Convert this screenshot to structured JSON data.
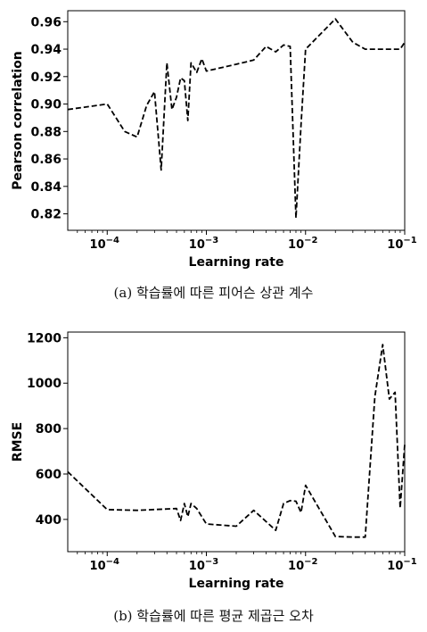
{
  "chart_data": [
    {
      "type": "line",
      "xscale": "log",
      "xlabel": "Learning rate",
      "ylabel": "Pearson correlation",
      "xlim": [
        4e-05,
        0.1
      ],
      "ylim": [
        0.808,
        0.968
      ],
      "xticks": [
        {
          "value": 0.0001,
          "base": "10",
          "exp": "−4"
        },
        {
          "value": 0.001,
          "base": "10",
          "exp": "−3"
        },
        {
          "value": 0.01,
          "base": "10",
          "exp": "−2"
        },
        {
          "value": 0.1,
          "base": "10",
          "exp": "−1"
        }
      ],
      "yticks": [
        0.82,
        0.84,
        0.86,
        0.88,
        0.9,
        0.92,
        0.94,
        0.96
      ],
      "ytick_decimals": 2,
      "line_style": "dashed",
      "line_color": "#000000",
      "x": [
        4e-05,
        0.0001,
        0.00015,
        0.0002,
        0.00025,
        0.0003,
        0.00035,
        0.0004,
        0.00045,
        0.0005,
        0.00055,
        0.0006,
        0.00065,
        0.0007,
        0.0008,
        0.0009,
        0.001,
        0.002,
        0.003,
        0.004,
        0.005,
        0.006,
        0.007,
        0.008,
        0.009,
        0.01,
        0.02,
        0.03,
        0.04,
        0.05,
        0.06,
        0.07,
        0.08,
        0.09,
        0.1
      ],
      "y": [
        0.896,
        0.9,
        0.88,
        0.876,
        0.899,
        0.909,
        0.852,
        0.93,
        0.896,
        0.905,
        0.919,
        0.917,
        0.888,
        0.93,
        0.923,
        0.933,
        0.924,
        0.929,
        0.932,
        0.942,
        0.938,
        0.943,
        0.942,
        0.817,
        0.885,
        0.94,
        0.962,
        0.945,
        0.94,
        0.94,
        0.94,
        0.94,
        0.94,
        0.94,
        0.945
      ],
      "caption": "(a)  학습률에 따른 피어슨 상관 계수"
    },
    {
      "type": "line",
      "xscale": "log",
      "xlabel": "Learning rate",
      "ylabel": "RMSE",
      "xlim": [
        4e-05,
        0.1
      ],
      "ylim": [
        258,
        1225
      ],
      "xticks": [
        {
          "value": 0.0001,
          "base": "10",
          "exp": "−4"
        },
        {
          "value": 0.001,
          "base": "10",
          "exp": "−3"
        },
        {
          "value": 0.01,
          "base": "10",
          "exp": "−2"
        },
        {
          "value": 0.1,
          "base": "10",
          "exp": "−1"
        }
      ],
      "yticks": [
        400,
        600,
        800,
        1000,
        1200
      ],
      "ytick_decimals": 0,
      "line_style": "dashed",
      "line_color": "#000000",
      "x": [
        4e-05,
        0.0001,
        0.0002,
        0.0005,
        0.00055,
        0.0006,
        0.00065,
        0.0007,
        0.0008,
        0.001,
        0.002,
        0.003,
        0.005,
        0.006,
        0.007,
        0.008,
        0.009,
        0.01,
        0.02,
        0.03,
        0.04,
        0.05,
        0.06,
        0.07,
        0.08,
        0.09,
        0.1
      ],
      "y": [
        610,
        443,
        440,
        448,
        395,
        470,
        412,
        470,
        448,
        380,
        370,
        440,
        352,
        470,
        483,
        480,
        430,
        550,
        325,
        322,
        322,
        940,
        1170,
        930,
        960,
        450,
        730
      ],
      "caption": "(b)  학습률에 따른 평균 제곱근 오차"
    }
  ]
}
